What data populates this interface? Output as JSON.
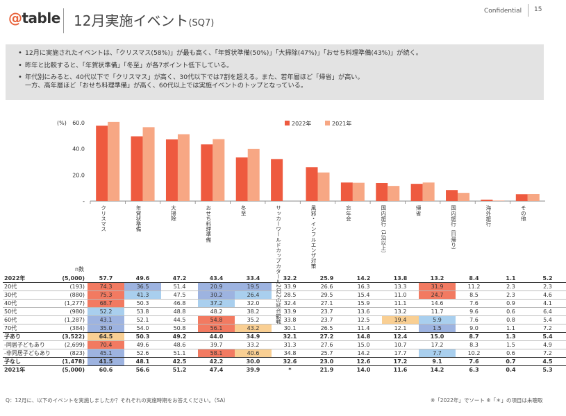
{
  "header": {
    "logo_prefix": "@",
    "logo_word": "table",
    "title": "12月実施イベント",
    "title_sub": "(SQ7)",
    "confidential": "Confidential",
    "page": "15"
  },
  "summary": [
    [
      "12月に実施されたイベントは、「クリスマス(58%)」が最も高く、「年賀状準備(50%)」「大掃除(47%)」「おせち料理準備(43%)」が続く。"
    ],
    [
      "昨年と比較すると、「年賀状準備」「冬至」が各7ポイント低下している。"
    ],
    [
      "年代別にみると、40代以下で「クリスマス」が高く、30代以下では7割を超える。また、若年層ほど「帰省」が高い。",
      "一方、高年層ほど「おせち料理準備」が高く、60代以上では実施イベントのトップとなっている。"
    ]
  ],
  "chart_data": {
    "type": "bar",
    "unit_label": "(%)",
    "ylim": [
      0,
      60
    ],
    "yticks": [
      "60.0",
      "40.0",
      "20.0",
      "-"
    ],
    "grid": false,
    "legend_position": "top-right",
    "categories": [
      "クリスマス",
      "年賀状準備",
      "大掃除",
      "おせち料理準備",
      "冬至",
      "サッカーワールドカップカタール2022の試合観戦",
      "風邪・インフルエンザ対策",
      "忘年会",
      "国内旅行（1泊以上）",
      "帰省",
      "国内旅行（日帰り）",
      "海外旅行",
      "その他"
    ],
    "series": [
      {
        "name": "2022年",
        "color": "#ee5a3f",
        "values": [
          57.7,
          49.6,
          47.2,
          43.4,
          33.4,
          32.2,
          25.9,
          14.2,
          13.8,
          13.2,
          8.4,
          1.1,
          5.2
        ]
      },
      {
        "name": "2021年",
        "color": "#f7a784",
        "values": [
          60.6,
          56.6,
          51.2,
          47.4,
          39.9,
          null,
          21.9,
          14.0,
          11.6,
          14.2,
          6.3,
          0.4,
          5.3
        ]
      }
    ]
  },
  "table": {
    "n_label": "n数",
    "rows": [
      {
        "label": "2022年",
        "n": "(5,000)",
        "values": [
          "57.7",
          "49.6",
          "47.2",
          "43.4",
          "33.4",
          "32.2",
          "25.9",
          "14.2",
          "13.8",
          "13.2",
          "8.4",
          "1.1",
          "5.2"
        ],
        "colors": [
          "",
          "",
          "",
          "",
          "",
          "",
          "",
          "",
          "",
          "",
          "",
          "",
          ""
        ],
        "bold": true,
        "cls": "hdr"
      },
      {
        "label": "20代",
        "n": "(193)",
        "values": [
          "74.3",
          "36.5",
          "51.4",
          "20.9",
          "19.5",
          "33.9",
          "26.6",
          "16.3",
          "13.3",
          "31.9",
          "11.2",
          "2.3",
          "2.3"
        ],
        "colors": [
          "red",
          "blue",
          "",
          "blue",
          "blue",
          "",
          "",
          "",
          "",
          "red",
          "",
          "",
          ""
        ],
        "bold": false,
        "cls": ""
      },
      {
        "label": "30代",
        "n": "(880)",
        "values": [
          "75.3",
          "41.3",
          "47.5",
          "30.2",
          "26.4",
          "28.5",
          "29.5",
          "15.4",
          "11.0",
          "24.7",
          "8.5",
          "2.3",
          "4.6"
        ],
        "colors": [
          "red",
          "lblue",
          "",
          "blue",
          "lblue",
          "",
          "",
          "",
          "",
          "red",
          "",
          "",
          ""
        ],
        "bold": false,
        "cls": "sep"
      },
      {
        "label": "40代",
        "n": "(1,277)",
        "values": [
          "68.7",
          "50.3",
          "46.8",
          "37.2",
          "32.0",
          "32.4",
          "27.1",
          "15.9",
          "11.1",
          "14.6",
          "7.6",
          "0.9",
          "4.1"
        ],
        "colors": [
          "red",
          "",
          "",
          "lblue",
          "",
          "",
          "",
          "",
          "",
          "",
          "",
          "",
          ""
        ],
        "bold": false,
        "cls": "sep"
      },
      {
        "label": "50代",
        "n": "(980)",
        "values": [
          "52.2",
          "53.8",
          "48.8",
          "48.2",
          "38.2",
          "33.9",
          "23.7",
          "13.6",
          "13.2",
          "11.7",
          "9.6",
          "0.6",
          "6.4"
        ],
        "colors": [
          "lblue",
          "",
          "",
          "",
          "",
          "",
          "",
          "",
          "",
          "",
          "",
          "",
          ""
        ],
        "bold": false,
        "cls": "sep"
      },
      {
        "label": "60代",
        "n": "(1,287)",
        "values": [
          "43.1",
          "52.1",
          "44.5",
          "54.8",
          "35.2",
          "33.8",
          "23.7",
          "12.5",
          "19.4",
          "5.9",
          "7.6",
          "0.8",
          "5.4"
        ],
        "colors": [
          "blue",
          "",
          "",
          "red",
          "",
          "",
          "",
          "",
          "orange",
          "lblue",
          "",
          "",
          ""
        ],
        "bold": false,
        "cls": "sep"
      },
      {
        "label": "70代",
        "n": "(384)",
        "values": [
          "35.0",
          "54.0",
          "50.8",
          "56.1",
          "43.2",
          "30.1",
          "26.5",
          "11.4",
          "12.1",
          "1.5",
          "9.0",
          "1.1",
          "7.2"
        ],
        "colors": [
          "blue",
          "",
          "",
          "red",
          "orange",
          "",
          "",
          "",
          "",
          "blue",
          "",
          "",
          ""
        ],
        "bold": false,
        "cls": "sep"
      },
      {
        "label": "子あり",
        "n": "(3,522)",
        "values": [
          "64.5",
          "50.3",
          "49.2",
          "44.0",
          "34.9",
          "32.1",
          "27.2",
          "14.8",
          "12.4",
          "15.0",
          "8.7",
          "1.3",
          "5.4"
        ],
        "colors": [
          "orange",
          "",
          "",
          "",
          "",
          "",
          "",
          "",
          "",
          "",
          "",
          "",
          ""
        ],
        "bold": true,
        "cls": "topstrong"
      },
      {
        "label": "-同居子どもあり",
        "n": "(2,699)",
        "values": [
          "70.4",
          "49.6",
          "48.6",
          "39.7",
          "33.2",
          "31.3",
          "27.6",
          "15.0",
          "10.7",
          "17.2",
          "8.3",
          "1.5",
          "4.9"
        ],
        "colors": [
          "red",
          "",
          "",
          "",
          "",
          "",
          "",
          "",
          "",
          "",
          "",
          "",
          ""
        ],
        "bold": false,
        "cls": "sep"
      },
      {
        "label": "-非同居子どもあり",
        "n": "(823)",
        "values": [
          "45.1",
          "52.6",
          "51.1",
          "58.1",
          "40.6",
          "34.8",
          "25.7",
          "14.2",
          "17.7",
          "7.7",
          "10.2",
          "0.6",
          "7.2"
        ],
        "colors": [
          "blue",
          "",
          "",
          "red",
          "orange",
          "",
          "",
          "",
          "",
          "lblue",
          "",
          "",
          ""
        ],
        "bold": false,
        "cls": "sep"
      },
      {
        "label": "子なし",
        "n": "(1,478)",
        "values": [
          "41.5",
          "48.1",
          "42.5",
          "42.2",
          "30.0",
          "32.6",
          "23.0",
          "12.6",
          "17.2",
          "9.1",
          "7.6",
          "0.7",
          "4.5"
        ],
        "colors": [
          "blue",
          "",
          "",
          "",
          "",
          "",
          "",
          "",
          "",
          "",
          "",
          "",
          ""
        ],
        "bold": true,
        "cls": "topstrong"
      },
      {
        "label": "2021年",
        "n": "(5,000)",
        "values": [
          "60.6",
          "56.6",
          "51.2",
          "47.4",
          "39.9",
          "*",
          "21.9",
          "14.0",
          "11.6",
          "14.2",
          "6.3",
          "0.4",
          "5.3"
        ],
        "colors": [
          "",
          "",
          "",
          "",
          "",
          "",
          "",
          "",
          "",
          "",
          "",
          "",
          ""
        ],
        "bold": true,
        "cls": "topstrong"
      }
    ]
  },
  "footnote": "Q：12月に、以下のイベントを実施しましたか？それぞれの実施時期をお答えください。（SA）",
  "footnote2": "※「2022年」でソート ※「＊」の項目は未聴取"
}
